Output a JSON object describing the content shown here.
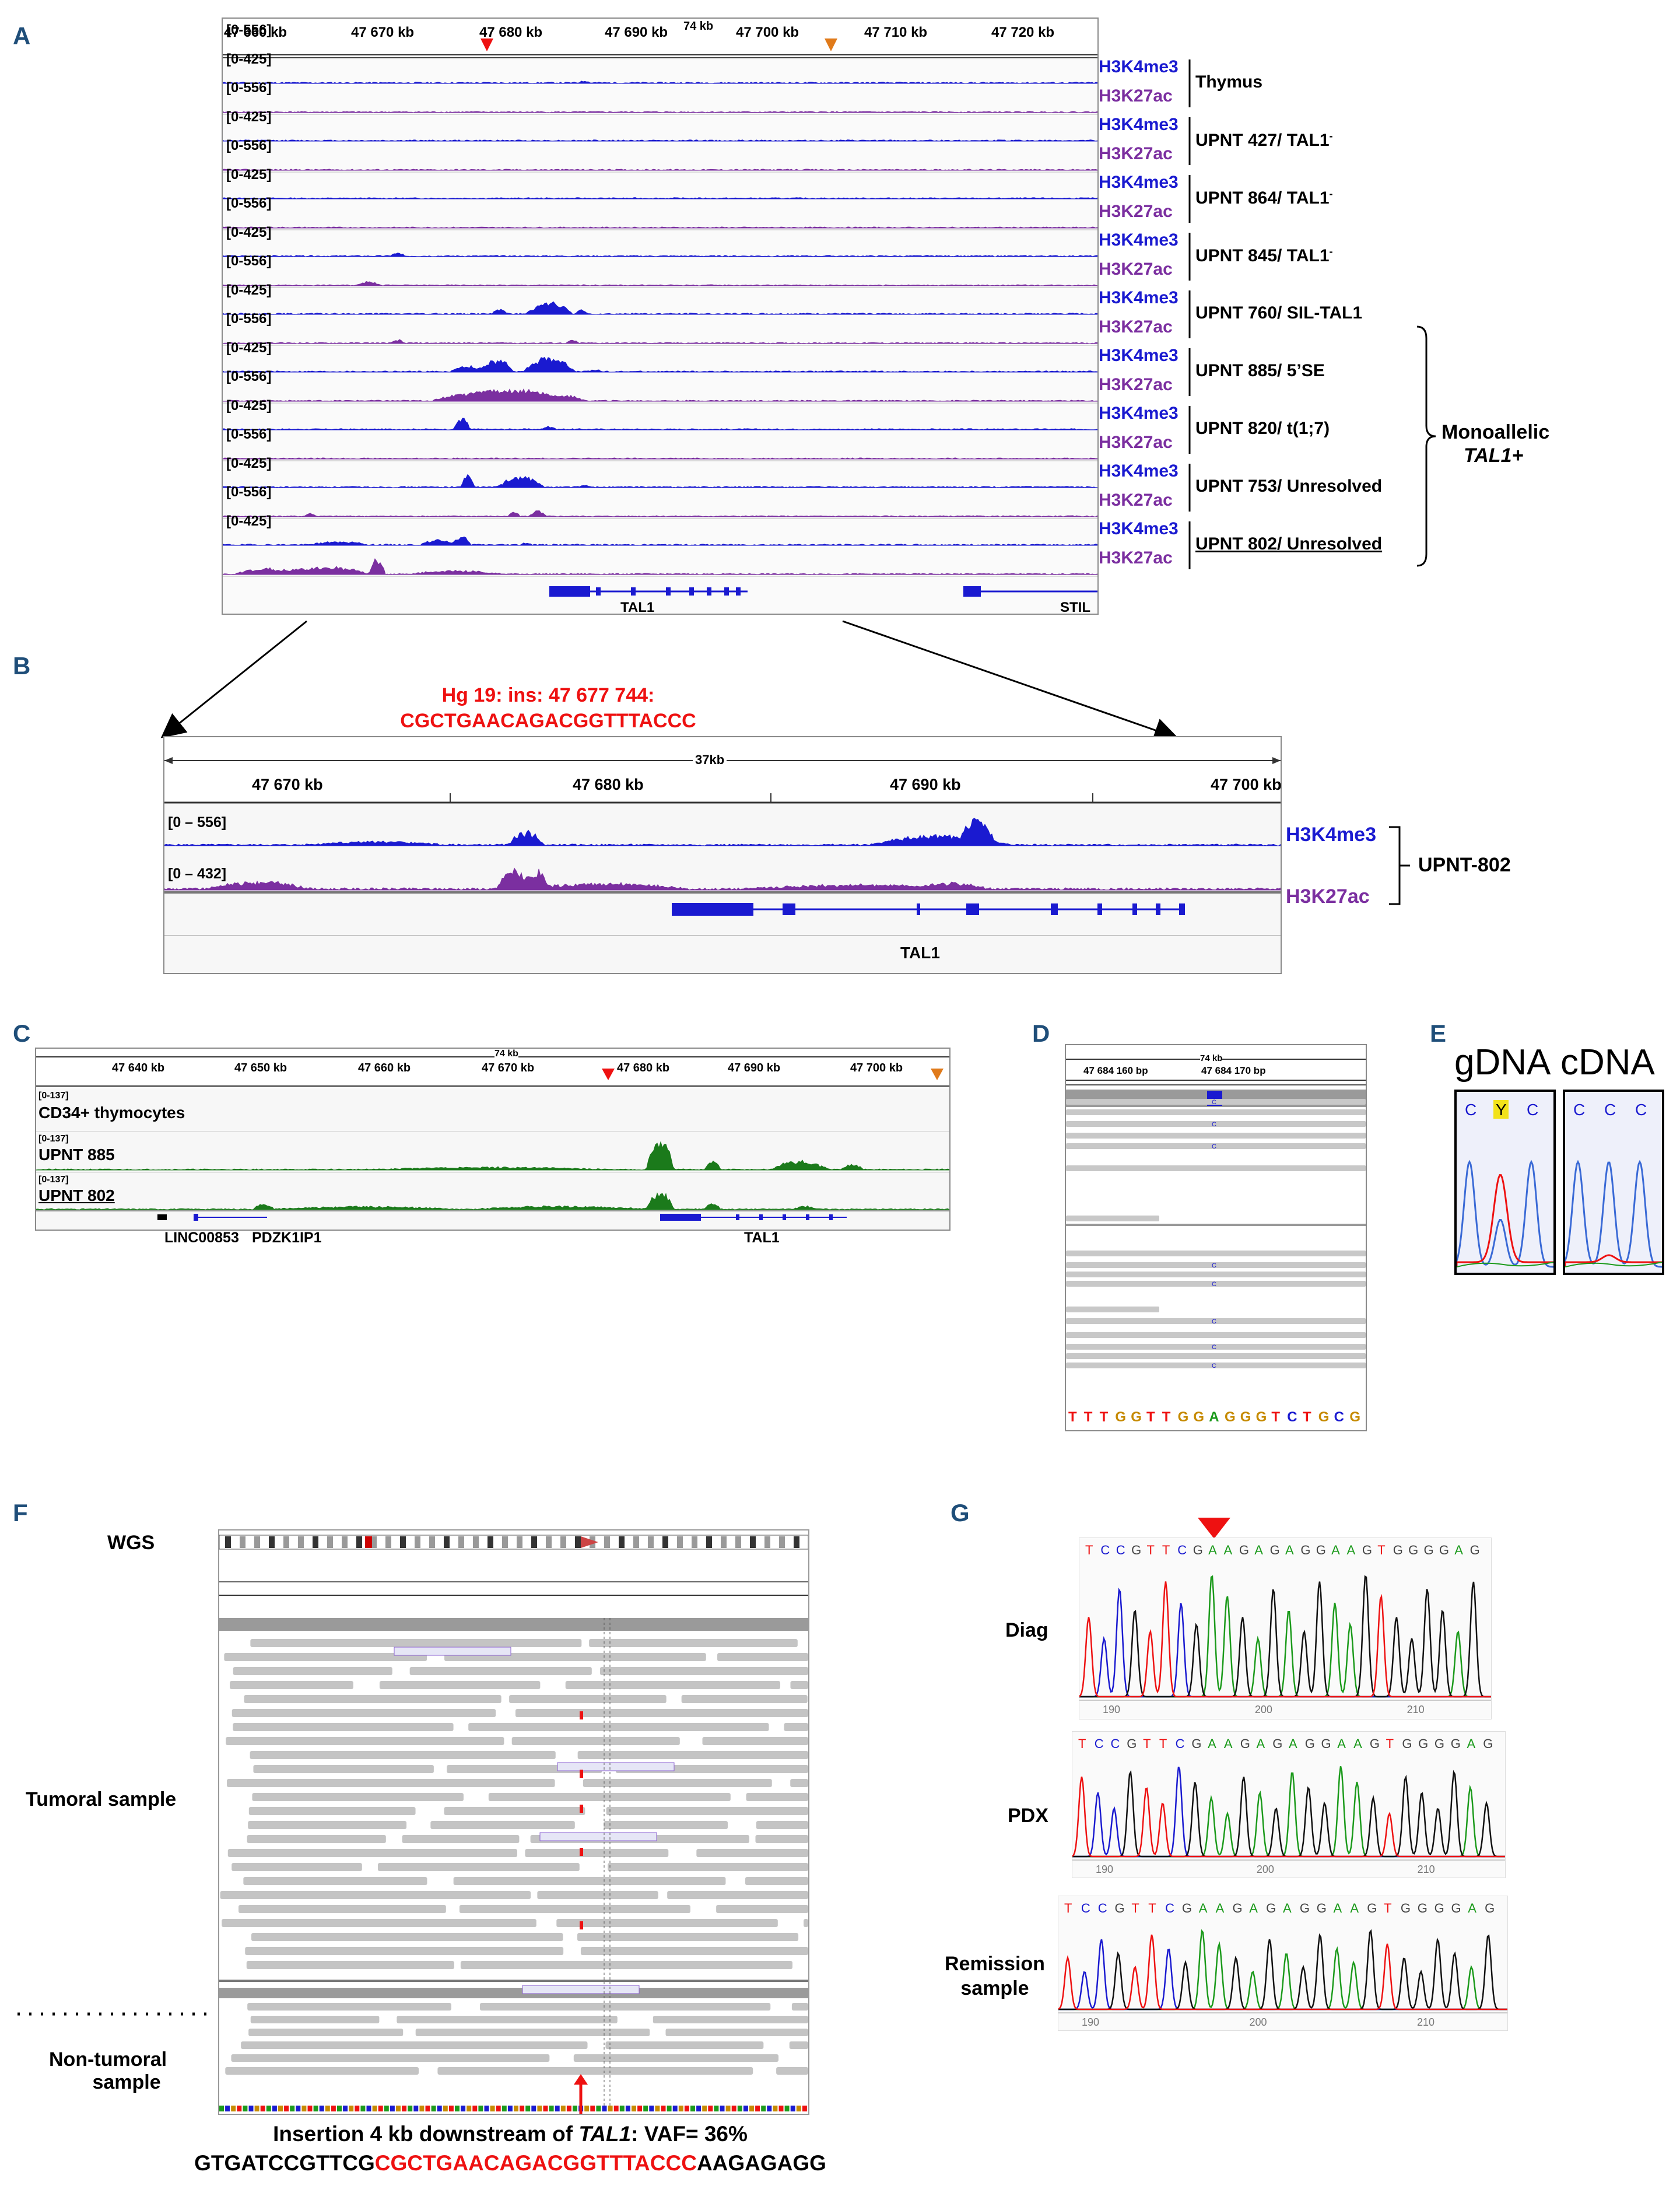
{
  "panels": {
    "A": "A",
    "B": "B",
    "C": "C",
    "D": "D",
    "E": "E",
    "F": "F",
    "G": "G"
  },
  "panelA": {
    "ruler_width": "74 kb",
    "ticks": [
      "47 660 kb",
      "47 670 kb",
      "47 680 kb",
      "47 690 kb",
      "47 700 kb",
      "47 710 kb",
      "47 720 kb"
    ],
    "range_k4": "[0-556]",
    "range_k27": "[0-425]",
    "mark_k4": "H3K4me3",
    "mark_k27": "H3K27ac",
    "samples": [
      "Thymus",
      "UPNT 427/ TAL1",
      "UPNT 864/ TAL1",
      "UPNT 845/ TAL1",
      "UPNT 760/ SIL-TAL1",
      "UPNT 885/ 5’SE",
      "UPNT 820/ t(1;7)",
      "UPNT 753/ Unresolved",
      "UPNT 802/ Unresolved"
    ],
    "superscript_minus": "-",
    "genes": [
      "TAL1",
      "STIL"
    ],
    "group_label_1": "Monoallelic",
    "group_label_2": "TAL1+"
  },
  "panelB": {
    "insertion_line1": "Hg 19: ins: 47 677 744:",
    "insertion_line2": "CGCTGAACAGACGGTTTACCC",
    "width": "37kb",
    "ticks": [
      "47 670 kb",
      "47 680 kb",
      "47 690 kb",
      "47 700 kb"
    ],
    "range_k4": "[0 – 556]",
    "range_k27": "[0 – 432]",
    "mark_k4": "H3K4me3",
    "mark_k27": "H3K27ac",
    "sample": "UPNT-802",
    "gene": "TAL1"
  },
  "panelC": {
    "width": "74 kb",
    "ticks": [
      "47 640 kb",
      "47 650 kb",
      "47 660 kb",
      "47 670 kb",
      "47 680 kb",
      "47 690 kb",
      "47 700 kb"
    ],
    "range": "[0-137]",
    "tracks": [
      "CD34+ thymocytes",
      "UPNT 885",
      "UPNT 802"
    ],
    "genes": [
      "LINC00853",
      "PDZK1IP1",
      "TAL1"
    ]
  },
  "panelD": {
    "width": "74 kb",
    "ticks": [
      "47 684 160 bp",
      "47 684 170 bp"
    ],
    "sequence": [
      "T",
      "T",
      "T",
      "G",
      "G",
      "T",
      "T",
      "G",
      "G",
      "A",
      "G",
      "G",
      "G",
      "T",
      "C",
      "T",
      "G",
      "C",
      "G"
    ]
  },
  "panelE": {
    "gdna": "gDNA",
    "cdna": "cDNA",
    "gdna_bases": [
      "C",
      "Y",
      "C"
    ],
    "cdna_bases": [
      "C",
      "C",
      "C"
    ]
  },
  "panelF": {
    "wgs": "WGS",
    "tumoral": "Tumoral sample",
    "nontumoral_1": "Non-tumoral",
    "nontumoral_2": "sample",
    "caption_prefix": "Insertion 4 kb downstream of ",
    "caption_gene": "TAL1",
    "caption_suffix": ": VAF= 36%",
    "seq_left": "GTGATCCGTTCG",
    "seq_insert": "CGCTGAACAGACGGTTTACCC",
    "seq_right": "AAGAGAGG"
  },
  "panelG": {
    "samples": [
      "Diag",
      "PDX",
      "Remission sample"
    ],
    "remission_1": "Remission",
    "remission_2": "sample",
    "sequence_diag": [
      "T",
      "C",
      "C",
      "G",
      "T",
      "T",
      "C",
      "G",
      "A",
      "A",
      "G",
      "A",
      "G",
      "A",
      "G",
      "G",
      "A",
      "A",
      "G",
      "T",
      "G",
      "G",
      "G",
      "G",
      "A",
      "G"
    ],
    "sequence_pdx": [
      "T",
      "C",
      "C",
      "G",
      "T",
      "T",
      "C",
      "G",
      "A",
      "A",
      "G",
      "A",
      "G",
      "A",
      "G",
      "G",
      "A",
      "A",
      "G",
      "T",
      "G",
      "G",
      "G",
      "G",
      "A",
      "G"
    ],
    "sequence_rem": [
      "T",
      "C",
      "C",
      "G",
      "T",
      "T",
      "C",
      "G",
      "A",
      "A",
      "G",
      "A",
      "G",
      "A",
      "G",
      "G",
      "A",
      "A",
      "G",
      "T",
      "G",
      "G",
      "G",
      "G",
      "A",
      "G"
    ],
    "axis": [
      "190",
      "200",
      "210"
    ]
  },
  "colors": {
    "k4": "#1a1ad0",
    "k27": "#7b2fa0",
    "red": "#ee1111",
    "green": "#1b7a1b",
    "orange": "#e07a1a",
    "frame": "#1f4e79"
  }
}
